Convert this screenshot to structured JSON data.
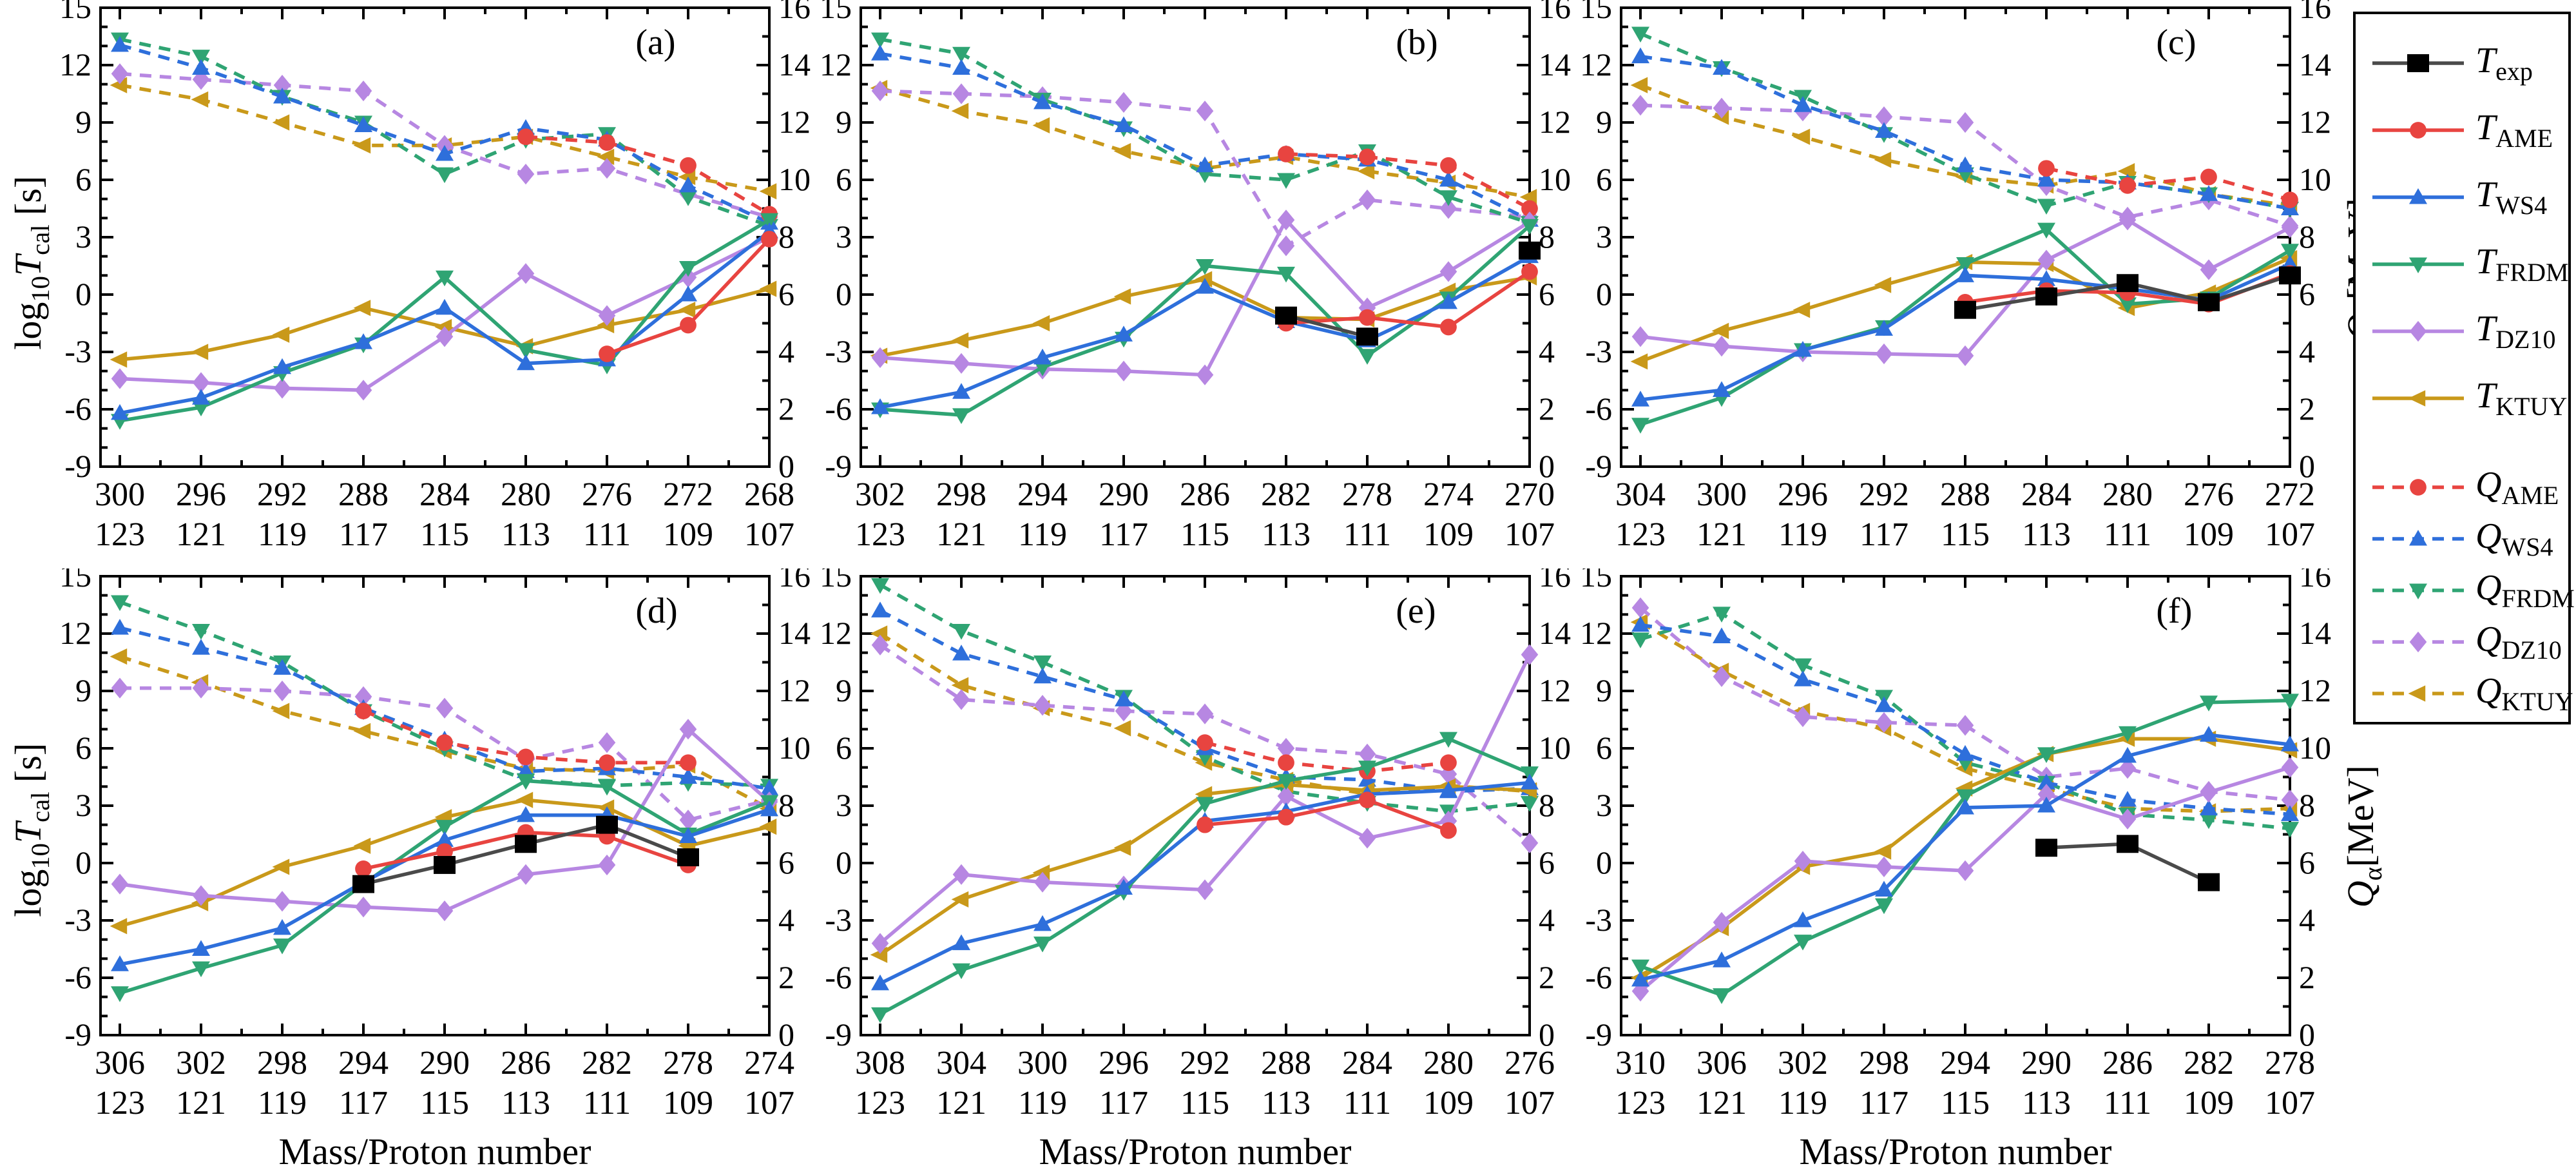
{
  "figure": {
    "xlabel": "Mass/Proton number",
    "ylabel_left": {
      "prefix": "log",
      "prefix_sub": "10",
      "symbol": "T",
      "symbol_sub": "cal",
      "unit": "[s]"
    },
    "ylabel_right": {
      "symbol": "Q",
      "symbol_sub": "α",
      "unit": "[MeV]"
    },
    "colors": {
      "exp": "#000000",
      "exp_line": "#4a4a4a",
      "AME": "#e84440",
      "WS4": "#2e6fdb",
      "FRDM": "#2fa473",
      "DZ10": "#b787e2",
      "KTUY": "#c9991a"
    },
    "markers": {
      "exp": "square",
      "AME": "circle",
      "WS4": "triangle-up",
      "FRDM": "triangle-down",
      "DZ10": "diamond",
      "KTUY": "triangle-left"
    }
  },
  "legend": {
    "t_entries": [
      {
        "key": "exp",
        "symbol": "T",
        "sub": "exp"
      },
      {
        "key": "AME",
        "symbol": "T",
        "sub": "AME"
      },
      {
        "key": "WS4",
        "symbol": "T",
        "sub": "WS4"
      },
      {
        "key": "FRDM",
        "symbol": "T",
        "sub": "FRDM"
      },
      {
        "key": "DZ10",
        "symbol": "T",
        "sub": "DZ10"
      },
      {
        "key": "KTUY",
        "symbol": "T",
        "sub": "KTUY"
      }
    ],
    "q_entries": [
      {
        "key": "AME",
        "symbol": "Q",
        "sub": "AME"
      },
      {
        "key": "WS4",
        "symbol": "Q",
        "sub": "WS4"
      },
      {
        "key": "FRDM",
        "symbol": "Q",
        "sub": "FRDM"
      },
      {
        "key": "DZ10",
        "symbol": "Q",
        "sub": "DZ10"
      },
      {
        "key": "KTUY",
        "symbol": "Q",
        "sub": "KTUY"
      }
    ]
  },
  "chart_data": {
    "type": "line",
    "ylim_left": [
      -9,
      15
    ],
    "ytick_left_step": 3,
    "ylim_right": [
      0,
      16
    ],
    "ytick_right_step": 2,
    "grid": false,
    "legend_position": "right",
    "panels": [
      {
        "letter": "(a)",
        "masses": [
          300,
          296,
          292,
          288,
          284,
          280,
          276,
          272,
          268
        ],
        "protons": [
          123,
          121,
          119,
          117,
          115,
          113,
          111,
          109,
          107
        ],
        "T": {
          "AME": [
            null,
            null,
            null,
            null,
            null,
            null,
            -3.1,
            -1.6,
            2.9
          ],
          "WS4": [
            -6.2,
            -5.4,
            -3.8,
            -2.5,
            -0.7,
            -3.6,
            -3.4,
            0.0,
            3.3
          ],
          "FRDM": [
            -6.6,
            -5.9,
            -4.1,
            -2.6,
            0.9,
            -2.9,
            -3.7,
            1.4,
            3.9
          ],
          "DZ10": [
            -4.4,
            -4.6,
            -4.9,
            -5.0,
            -2.2,
            1.1,
            -1.1,
            0.9,
            3.0
          ],
          "KTUY": [
            -3.4,
            -3.0,
            -2.1,
            -0.7,
            -1.7,
            -2.7,
            -1.6,
            -0.8,
            0.3
          ]
        },
        "Q": {
          "AME": [
            null,
            null,
            null,
            null,
            null,
            11.5,
            11.3,
            10.5,
            8.8
          ],
          "WS4": [
            14.7,
            13.9,
            12.9,
            11.9,
            10.9,
            11.8,
            11.4,
            9.8,
            8.5
          ],
          "FRDM": [
            14.9,
            14.3,
            12.9,
            12.0,
            10.2,
            11.4,
            11.6,
            9.4,
            8.4
          ],
          "DZ10": [
            13.7,
            13.5,
            13.3,
            13.1,
            11.2,
            10.2,
            10.4,
            9.5,
            8.7
          ],
          "KTUY": [
            13.3,
            12.8,
            12.0,
            11.2,
            11.2,
            11.5,
            10.8,
            10.1,
            9.6
          ]
        }
      },
      {
        "letter": "(b)",
        "masses": [
          302,
          298,
          294,
          290,
          286,
          282,
          278,
          274,
          270
        ],
        "protons": [
          123,
          121,
          119,
          117,
          115,
          113,
          111,
          109,
          107
        ],
        "T": {
          "exp": [
            null,
            null,
            null,
            null,
            null,
            -1.1,
            -2.2,
            null,
            2.3
          ],
          "AME": [
            null,
            null,
            null,
            null,
            null,
            -1.5,
            -1.2,
            -1.7,
            1.2
          ],
          "WS4": [
            -5.9,
            -5.1,
            -3.3,
            -2.1,
            0.4,
            -1.4,
            -2.4,
            -0.4,
            2.0
          ],
          "FRDM": [
            -6.0,
            -6.3,
            -3.8,
            -2.3,
            1.5,
            1.1,
            -3.2,
            -0.2,
            3.6
          ],
          "DZ10": [
            -3.3,
            -3.6,
            -3.9,
            -4.0,
            -4.2,
            3.9,
            -0.7,
            1.2,
            3.8
          ],
          "KTUY": [
            -3.2,
            -2.4,
            -1.5,
            -0.1,
            0.8,
            -1.2,
            -1.3,
            0.2,
            0.9
          ]
        },
        "Q": {
          "AME": [
            null,
            null,
            null,
            null,
            null,
            10.9,
            10.8,
            10.5,
            9.0
          ],
          "WS4": [
            14.4,
            13.9,
            12.7,
            11.9,
            10.5,
            10.9,
            10.7,
            10.0,
            8.6
          ],
          "FRDM": [
            14.9,
            14.4,
            12.8,
            11.8,
            10.2,
            10.0,
            11.0,
            9.4,
            8.5
          ],
          "DZ10": [
            13.1,
            13.0,
            12.9,
            12.7,
            12.4,
            7.7,
            9.3,
            9.0,
            8.7
          ],
          "KTUY": [
            13.2,
            12.4,
            11.9,
            11.0,
            10.4,
            10.8,
            10.3,
            9.9,
            9.4
          ]
        }
      },
      {
        "letter": "(c)",
        "masses": [
          304,
          300,
          296,
          292,
          288,
          284,
          280,
          276,
          272
        ],
        "protons": [
          123,
          121,
          119,
          117,
          115,
          113,
          111,
          109,
          107
        ],
        "T": {
          "exp": [
            null,
            null,
            null,
            null,
            -0.8,
            -0.1,
            0.6,
            -0.4,
            1.0
          ],
          "AME": [
            null,
            null,
            null,
            null,
            -0.4,
            0.2,
            0.1,
            -0.5,
            1.1
          ],
          "WS4": [
            -5.5,
            -5.0,
            -2.9,
            -1.8,
            1.0,
            0.8,
            0.3,
            -0.3,
            1.6
          ],
          "FRDM": [
            -6.8,
            -5.4,
            -2.9,
            -1.7,
            1.6,
            3.4,
            -0.5,
            -0.2,
            2.3
          ],
          "DZ10": [
            -2.2,
            -2.7,
            -3.0,
            -3.1,
            -3.2,
            1.8,
            3.9,
            1.3,
            3.5
          ],
          "KTUY": [
            -3.5,
            -1.9,
            -0.8,
            0.5,
            1.7,
            1.6,
            -0.7,
            0.1,
            1.9
          ]
        },
        "Q": {
          "AME": [
            null,
            null,
            null,
            null,
            null,
            10.4,
            9.8,
            10.1,
            9.3
          ],
          "WS4": [
            14.3,
            13.9,
            12.6,
            11.7,
            10.5,
            10.0,
            9.9,
            9.5,
            9.0
          ],
          "FRDM": [
            15.1,
            13.9,
            12.9,
            11.6,
            10.2,
            9.1,
            9.9,
            9.5,
            9.0
          ],
          "DZ10": [
            12.6,
            12.5,
            12.4,
            12.2,
            12.0,
            9.8,
            8.7,
            9.3,
            8.4
          ],
          "KTUY": [
            13.3,
            12.2,
            11.5,
            10.7,
            10.1,
            9.8,
            10.3,
            9.5,
            9.1
          ]
        }
      },
      {
        "letter": "(d)",
        "masses": [
          306,
          302,
          298,
          294,
          290,
          286,
          282,
          278,
          274
        ],
        "protons": [
          123,
          121,
          119,
          117,
          115,
          113,
          111,
          109,
          107
        ],
        "T": {
          "exp": [
            null,
            null,
            null,
            -1.1,
            -0.1,
            1.0,
            2.0,
            0.3,
            null
          ],
          "AME": [
            null,
            null,
            null,
            -0.3,
            0.6,
            1.6,
            1.4,
            -0.1,
            null
          ],
          "WS4": [
            -5.3,
            -4.5,
            -3.4,
            -1.0,
            1.2,
            2.5,
            2.5,
            1.4,
            2.8
          ],
          "FRDM": [
            -6.8,
            -5.5,
            -4.3,
            -1.1,
            1.9,
            4.3,
            4.0,
            1.5,
            3.2
          ],
          "DZ10": [
            -1.1,
            -1.7,
            -2.0,
            -2.3,
            -2.5,
            -0.6,
            -0.1,
            7.0,
            3.2
          ],
          "KTUY": [
            -3.3,
            -2.1,
            -0.2,
            0.9,
            2.4,
            3.3,
            2.9,
            0.9,
            1.9
          ]
        },
        "Q": {
          "AME": [
            null,
            null,
            null,
            11.3,
            10.2,
            9.7,
            9.5,
            9.5,
            null
          ],
          "WS4": [
            14.2,
            13.5,
            12.8,
            11.4,
            10.3,
            9.2,
            9.3,
            9.0,
            8.6
          ],
          "FRDM": [
            15.1,
            14.1,
            13.0,
            11.3,
            10.0,
            8.9,
            8.7,
            8.8,
            8.7
          ],
          "DZ10": [
            12.1,
            12.1,
            12.0,
            11.8,
            11.4,
            9.6,
            10.2,
            7.5,
            8.2
          ],
          "KTUY": [
            13.2,
            12.3,
            11.3,
            10.6,
            9.9,
            9.3,
            9.2,
            9.4,
            7.9
          ]
        }
      },
      {
        "letter": "(e)",
        "masses": [
          308,
          304,
          300,
          296,
          292,
          288,
          284,
          280,
          276
        ],
        "protons": [
          123,
          121,
          119,
          117,
          115,
          113,
          111,
          109,
          107
        ],
        "T": {
          "AME": [
            null,
            null,
            null,
            null,
            2.0,
            2.4,
            3.3,
            1.7,
            null
          ],
          "WS4": [
            -6.3,
            -4.2,
            -3.2,
            -1.3,
            2.2,
            2.7,
            3.6,
            3.8,
            4.2
          ],
          "FRDM": [
            -7.9,
            -5.6,
            -4.2,
            -1.5,
            3.1,
            4.3,
            5.0,
            6.5,
            4.7
          ],
          "DZ10": [
            -4.2,
            -0.6,
            -1.0,
            -1.2,
            -1.4,
            3.5,
            1.3,
            2.2,
            10.9
          ],
          "KTUY": [
            -4.8,
            -1.9,
            -0.5,
            0.8,
            3.6,
            4.1,
            3.8,
            4.0,
            3.8
          ]
        },
        "Q": {
          "AME": [
            null,
            null,
            null,
            null,
            10.2,
            9.5,
            9.2,
            9.5,
            null
          ],
          "WS4": [
            14.8,
            13.3,
            12.5,
            11.7,
            10.0,
            9.0,
            8.9,
            8.5,
            8.6
          ],
          "FRDM": [
            15.7,
            14.1,
            13.0,
            11.8,
            9.7,
            8.5,
            8.1,
            7.8,
            8.1
          ],
          "DZ10": [
            13.6,
            11.7,
            11.5,
            11.3,
            11.2,
            10.0,
            9.8,
            9.1,
            6.7
          ],
          "KTUY": [
            14.0,
            12.2,
            11.4,
            10.7,
            9.5,
            8.9,
            8.4,
            8.7,
            8.5
          ]
        }
      },
      {
        "letter": "(f)",
        "masses": [
          310,
          306,
          302,
          298,
          294,
          290,
          286,
          282,
          278
        ],
        "protons": [
          123,
          121,
          119,
          117,
          115,
          113,
          111,
          109,
          107
        ],
        "T": {
          "exp": [
            null,
            null,
            null,
            null,
            null,
            0.8,
            1.0,
            -1.0,
            null
          ],
          "WS4": [
            -6.1,
            -5.1,
            -3.0,
            -1.4,
            2.9,
            3.0,
            5.6,
            6.7,
            6.2
          ],
          "FRDM": [
            -5.4,
            -6.9,
            -4.1,
            -2.2,
            3.5,
            5.7,
            6.8,
            8.4,
            8.5
          ],
          "DZ10": [
            -6.7,
            -3.1,
            0.1,
            -0.2,
            -0.4,
            3.6,
            2.3,
            3.7,
            5.0
          ],
          "KTUY": [
            -6.0,
            -3.4,
            -0.2,
            0.6,
            3.9,
            5.7,
            6.5,
            6.5,
            5.9
          ]
        },
        "Q": {
          "WS4": [
            14.3,
            13.9,
            12.4,
            11.5,
            9.8,
            8.8,
            8.2,
            7.9,
            7.7
          ],
          "FRDM": [
            13.8,
            14.7,
            12.9,
            11.8,
            9.5,
            8.8,
            7.7,
            7.5,
            7.2
          ],
          "DZ10": [
            14.9,
            12.5,
            11.1,
            10.9,
            10.8,
            9.0,
            9.3,
            8.5,
            8.2
          ],
          "KTUY": [
            14.4,
            12.7,
            11.3,
            10.7,
            9.3,
            8.6,
            7.9,
            7.8,
            7.9
          ]
        }
      }
    ]
  }
}
